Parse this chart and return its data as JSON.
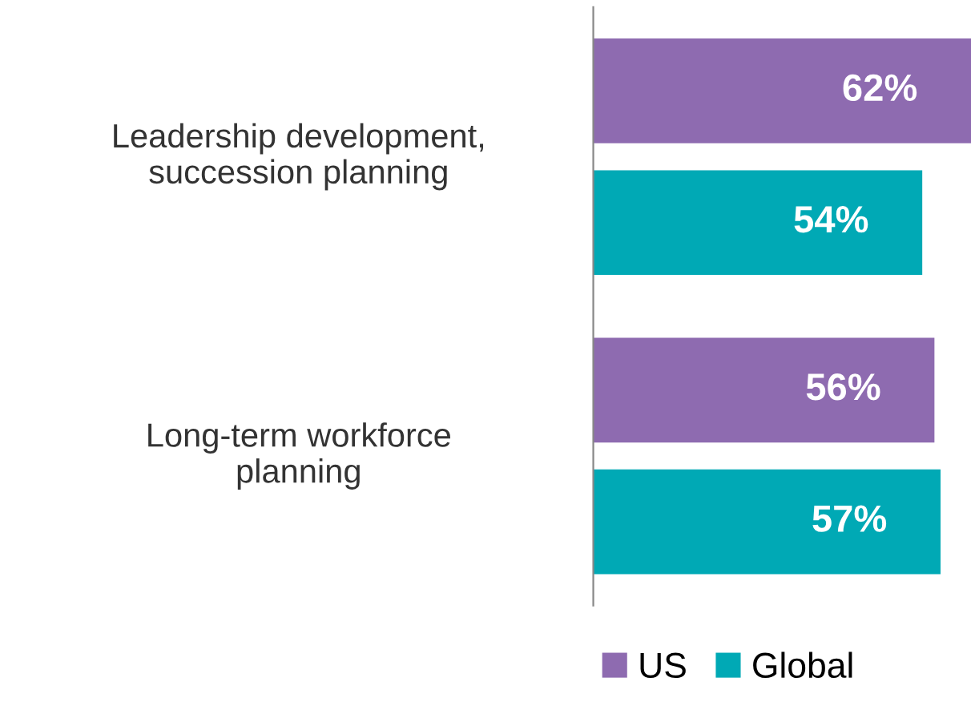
{
  "chart_data": {
    "type": "bar",
    "orientation": "horizontal",
    "categories": [
      "Leadership development,\nsuccession planning",
      "Long-term workforce\nplanning"
    ],
    "series": [
      {
        "name": "US",
        "color": "#8e6bb0",
        "values": [
          62,
          56
        ],
        "value_labels": [
          "62%",
          "56%"
        ]
      },
      {
        "name": "Global",
        "color": "#00a9b5",
        "values": [
          54,
          57
        ],
        "value_labels": [
          "54%",
          "57%"
        ]
      }
    ],
    "tick_labels": "y",
    "legend": "bottom"
  }
}
